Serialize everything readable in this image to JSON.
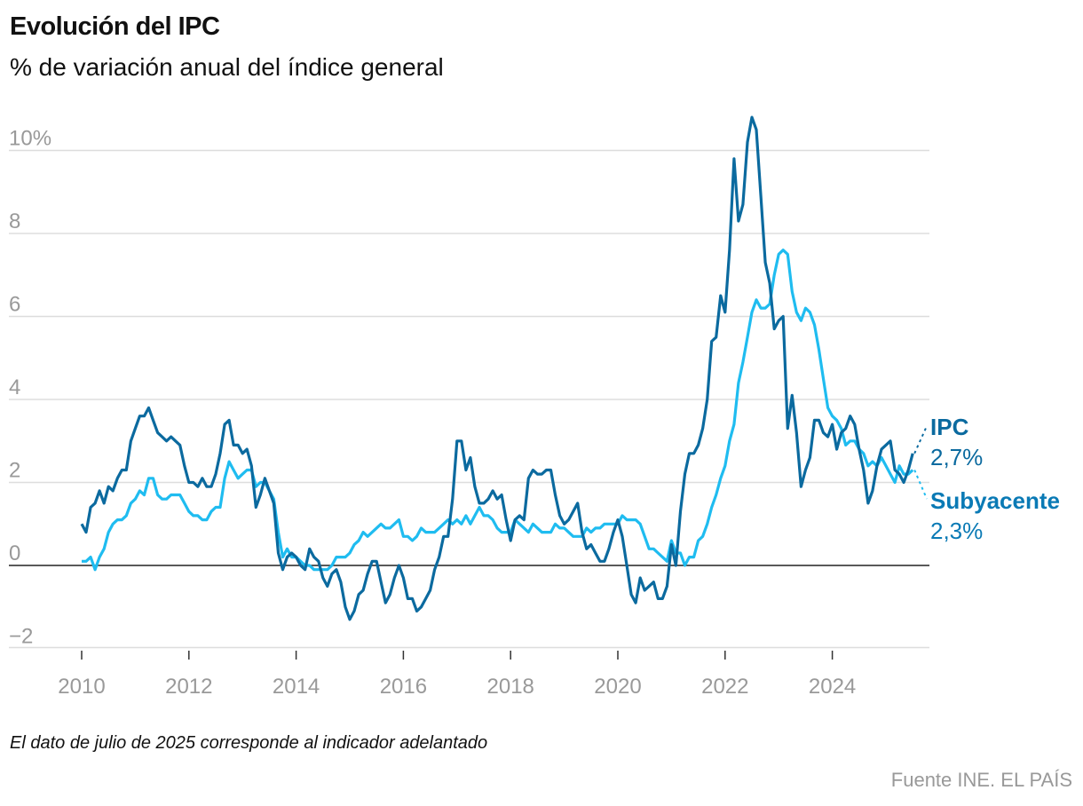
{
  "header": {
    "title": "Evolución del IPC",
    "subtitle": "% de variación anual del índice general"
  },
  "footer": {
    "note": "El dato de julio de 2025 corresponde al indicador adelantado",
    "source": "Fuente INE. EL PAÍS"
  },
  "chart_data": {
    "type": "line",
    "title": "Evolución del IPC",
    "subtitle": "% de variación anual del índice general",
    "x_start": "2010-01",
    "x_end": "2025-07",
    "frequency": "monthly",
    "xlim": [
      2010,
      2025.8
    ],
    "ylim": [
      -2,
      10.5
    ],
    "yticks": [
      -2,
      0,
      2,
      4,
      6,
      8,
      10
    ],
    "ytick_labels": [
      "−2",
      "0",
      "2",
      "4",
      "6",
      "8",
      "10%"
    ],
    "xticks": [
      2010,
      2012,
      2014,
      2016,
      2018,
      2020,
      2022,
      2024
    ],
    "xtick_labels": [
      "2010",
      "2012",
      "2014",
      "2016",
      "2018",
      "2020",
      "2022",
      "2024"
    ],
    "grid": true,
    "series": [
      {
        "name": "IPC",
        "color": "#0b6a9f",
        "end_label": "2,7%",
        "values": [
          1.0,
          0.8,
          1.4,
          1.5,
          1.8,
          1.5,
          1.9,
          1.8,
          2.1,
          2.3,
          2.3,
          3.0,
          3.3,
          3.6,
          3.6,
          3.8,
          3.5,
          3.2,
          3.1,
          3.0,
          3.1,
          3.0,
          2.9,
          2.4,
          2.0,
          2.0,
          1.9,
          2.1,
          1.9,
          1.9,
          2.2,
          2.7,
          3.4,
          3.5,
          2.9,
          2.9,
          2.7,
          2.8,
          2.4,
          1.4,
          1.7,
          2.1,
          1.8,
          1.5,
          0.3,
          -0.1,
          0.2,
          0.3,
          0.2,
          0.0,
          -0.1,
          0.4,
          0.2,
          0.1,
          -0.3,
          -0.5,
          -0.2,
          -0.1,
          -0.4,
          -1.0,
          -1.3,
          -1.1,
          -0.7,
          -0.6,
          -0.2,
          0.1,
          0.1,
          -0.4,
          -0.9,
          -0.7,
          -0.3,
          0.0,
          -0.3,
          -0.8,
          -0.8,
          -1.1,
          -1.0,
          -0.8,
          -0.6,
          -0.1,
          0.2,
          0.7,
          0.7,
          1.6,
          3.0,
          3.0,
          2.3,
          2.6,
          1.9,
          1.5,
          1.5,
          1.6,
          1.8,
          1.6,
          1.7,
          1.1,
          0.6,
          1.1,
          1.2,
          1.1,
          2.1,
          2.3,
          2.2,
          2.2,
          2.3,
          2.3,
          1.7,
          1.2,
          1.0,
          1.1,
          1.3,
          1.5,
          0.8,
          0.4,
          0.5,
          0.3,
          0.1,
          0.1,
          0.4,
          0.8,
          1.1,
          0.7,
          0.0,
          -0.7,
          -0.9,
          -0.3,
          -0.6,
          -0.5,
          -0.4,
          -0.8,
          -0.8,
          -0.5,
          0.5,
          0.0,
          1.3,
          2.2,
          2.7,
          2.7,
          2.9,
          3.3,
          4.0,
          5.4,
          5.5,
          6.5,
          6.1,
          7.6,
          9.8,
          8.3,
          8.7,
          10.2,
          10.8,
          10.5,
          8.9,
          7.3,
          6.8,
          5.7,
          5.9,
          6.0,
          3.3,
          4.1,
          3.2,
          1.9,
          2.3,
          2.6,
          3.5,
          3.5,
          3.2,
          3.1,
          3.4,
          2.8,
          3.2,
          3.3,
          3.6,
          3.4,
          2.8,
          2.3,
          1.5,
          1.8,
          2.4,
          2.8,
          2.9,
          3.0,
          2.3,
          2.2,
          2.0,
          2.3,
          2.7
        ]
      },
      {
        "name": "Subyacente",
        "color": "#1fbcf0",
        "label_color": "#0a7ab5",
        "end_label": "2,3%",
        "values": [
          0.1,
          0.1,
          0.2,
          -0.1,
          0.2,
          0.4,
          0.8,
          1.0,
          1.1,
          1.1,
          1.2,
          1.5,
          1.6,
          1.8,
          1.7,
          2.1,
          2.1,
          1.7,
          1.6,
          1.6,
          1.7,
          1.7,
          1.7,
          1.5,
          1.3,
          1.2,
          1.2,
          1.1,
          1.1,
          1.3,
          1.4,
          1.4,
          2.1,
          2.5,
          2.3,
          2.1,
          2.2,
          2.3,
          2.3,
          1.9,
          2.0,
          2.0,
          1.8,
          1.6,
          0.8,
          0.2,
          0.4,
          0.2,
          0.2,
          0.1,
          0.0,
          0.0,
          -0.1,
          -0.1,
          -0.1,
          -0.1,
          0.0,
          0.2,
          0.2,
          0.2,
          0.3,
          0.5,
          0.6,
          0.8,
          0.7,
          0.8,
          0.9,
          1.0,
          0.9,
          0.9,
          1.0,
          1.1,
          0.7,
          0.7,
          0.6,
          0.7,
          0.9,
          0.8,
          0.8,
          0.8,
          0.9,
          1.0,
          1.1,
          1.0,
          1.1,
          1.0,
          1.2,
          1.0,
          1.2,
          1.4,
          1.2,
          1.2,
          1.1,
          0.9,
          0.8,
          0.8,
          0.8,
          1.1,
          1.0,
          0.9,
          0.8,
          1.0,
          0.9,
          0.8,
          0.8,
          0.8,
          1.0,
          0.9,
          0.9,
          0.8,
          0.7,
          0.7,
          0.7,
          0.9,
          0.8,
          0.9,
          0.9,
          1.0,
          1.0,
          1.0,
          1.0,
          1.2,
          1.1,
          1.1,
          1.1,
          1.0,
          0.7,
          0.4,
          0.4,
          0.3,
          0.2,
          0.1,
          0.6,
          0.3,
          0.3,
          0.0,
          0.2,
          0.2,
          0.6,
          0.7,
          1.0,
          1.4,
          1.7,
          2.1,
          2.4,
          3.0,
          3.4,
          4.4,
          4.9,
          5.5,
          6.1,
          6.4,
          6.2,
          6.2,
          6.3,
          7.0,
          7.5,
          7.6,
          7.5,
          6.6,
          6.1,
          5.9,
          6.2,
          6.1,
          5.8,
          5.2,
          4.5,
          3.8,
          3.6,
          3.5,
          3.3,
          2.9,
          3.0,
          3.0,
          2.8,
          2.7,
          2.4,
          2.5,
          2.4,
          2.6,
          2.4,
          2.2,
          2.0,
          2.4,
          2.2,
          2.2,
          2.3
        ]
      }
    ]
  }
}
